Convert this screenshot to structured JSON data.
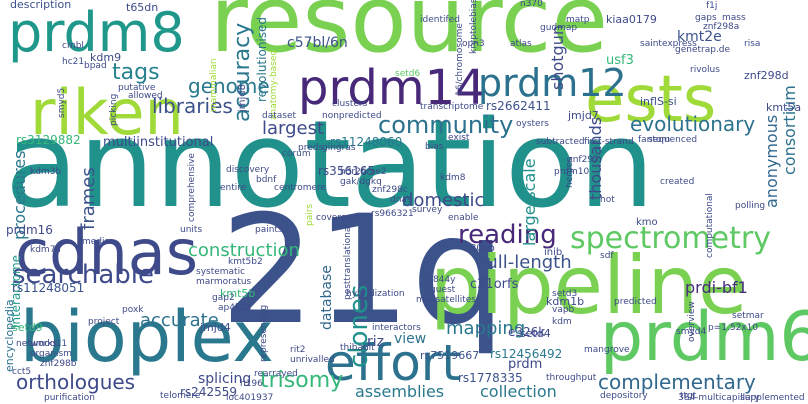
{
  "words": [
    {
      "text": "resource",
      "color": "#7ad151"
    },
    {
      "text": "annotation",
      "color": "#21918c"
    },
    {
      "text": "21q",
      "color": "#3b528b"
    },
    {
      "text": "pipeline",
      "color": "#7ad151"
    },
    {
      "text": "bioplex",
      "color": "#2a788e"
    },
    {
      "text": "prdm14",
      "color": "#482878"
    },
    {
      "text": "prdm8",
      "color": "#1f988b"
    },
    {
      "text": "cdnas",
      "color": "#3e4a89"
    },
    {
      "text": "prdm6",
      "color": "#5ec962"
    },
    {
      "text": "riken",
      "color": "#a0da39"
    },
    {
      "text": "ests",
      "color": "#a0da39"
    },
    {
      "text": "effort",
      "color": "#2c728e"
    },
    {
      "text": "prdm12",
      "color": "#2c728e"
    },
    {
      "text": "spectrometry",
      "color": "#5ec962"
    },
    {
      "text": "searchable",
      "color": "#3e4a89"
    },
    {
      "text": "community",
      "color": "#2c728e"
    },
    {
      "text": "accuracy",
      "color": "#2a788e"
    },
    {
      "text": "reading",
      "color": "#482878"
    },
    {
      "text": "libraries",
      "color": "#3b528b"
    },
    {
      "text": "genome",
      "color": "#2a788e"
    },
    {
      "text": "tags",
      "color": "#26828e"
    },
    {
      "text": "clones",
      "color": "#21918c"
    },
    {
      "text": "trisomy",
      "color": "#35b779"
    },
    {
      "text": "orthologues",
      "color": "#3e4a89"
    },
    {
      "text": "complementary",
      "color": "#31688e"
    },
    {
      "text": "evolutionary",
      "color": "#2c728e"
    },
    {
      "text": "largest",
      "color": "#3e4a89"
    },
    {
      "text": "construction",
      "color": "#35b779"
    },
    {
      "text": "full-length",
      "color": "#3b528b"
    },
    {
      "text": "domestic",
      "color": "#3e4a89"
    },
    {
      "text": "accurate",
      "color": "#2c728e"
    },
    {
      "text": "mapping",
      "color": "#2a788e"
    },
    {
      "text": "assemblies",
      "color": "#2a788e"
    },
    {
      "text": "collection",
      "color": "#2a788e"
    },
    {
      "text": "procedures",
      "color": "#2a788e"
    },
    {
      "text": "frames",
      "color": "#3b528b"
    },
    {
      "text": "shotgun",
      "color": "#3e4a89"
    },
    {
      "text": "consortium",
      "color": "#2c728e"
    },
    {
      "text": "anonymous",
      "color": "#31688e"
    },
    {
      "text": "large-scale",
      "color": "#21918c"
    },
    {
      "text": "thousands",
      "color": "#3e4a89"
    },
    {
      "text": "prdi-bf1",
      "color": "#472d7b"
    },
    {
      "text": "kmt2e",
      "color": "#3b528b"
    },
    {
      "text": "c57bl/6n",
      "color": "#3b528b"
    },
    {
      "text": "revolutionised",
      "color": "#2a788e"
    },
    {
      "text": "rs2662411",
      "color": "#3b528b"
    },
    {
      "text": "multiinstitutional",
      "color": "#3e4a89"
    },
    {
      "text": "interactome",
      "color": "#1f988b"
    },
    {
      "text": "encyclopedia",
      "color": "#2c728e"
    },
    {
      "text": "splicing",
      "color": "#3e4a89"
    },
    {
      "text": "database",
      "color": "#31688e"
    },
    {
      "text": "riz",
      "color": "#3e4a89"
    },
    {
      "text": "view",
      "color": "#2c728e"
    },
    {
      "text": "prdm",
      "color": "#3e4a89"
    },
    {
      "text": "prdm16",
      "color": "#3e4a89"
    },
    {
      "text": "rs3129882",
      "color": "#35b779"
    },
    {
      "text": "rs11248060",
      "color": "#2a788e"
    },
    {
      "text": "rs356165",
      "color": "#3e4a89"
    },
    {
      "text": "rs11248051",
      "color": "#3b528b"
    },
    {
      "text": "rs12456492",
      "color": "#2a788e"
    },
    {
      "text": "rs1778335",
      "color": "#3b528b"
    },
    {
      "text": "rs7519667",
      "color": "#3b528b"
    },
    {
      "text": "rs242559",
      "color": "#3e4a89"
    },
    {
      "text": "e326k",
      "color": "#3e4a89"
    },
    {
      "text": "c21orfs",
      "color": "#3e4a89"
    },
    {
      "text": "usf3",
      "color": "#35b779"
    },
    {
      "text": "jmjd4",
      "color": "#3e4a89"
    },
    {
      "text": "kmt5b",
      "color": "#35b779"
    },
    {
      "text": "kdm1b",
      "color": "#3e4a89"
    },
    {
      "text": "inflS-si",
      "color": "#3b528b"
    },
    {
      "text": "kiaa0179",
      "color": "#3e4a89"
    },
    {
      "text": "znf298d",
      "color": "#3e4a89"
    },
    {
      "text": "description",
      "color": "#3b528b"
    },
    {
      "text": "t65dn",
      "color": "#3e4a89"
    },
    {
      "text": "kdm9",
      "color": "#3e4a89"
    },
    {
      "text": "setd9",
      "color": "#35b779"
    },
    {
      "text": "jmjd7",
      "color": "#3e4a89"
    },
    {
      "text": "setd4",
      "color": "#3e4a89"
    },
    {
      "text": "kmt5a",
      "color": "#3e4a89"
    },
    {
      "text": "jmjd8",
      "color": "#3e4a89"
    },
    {
      "text": "kmo",
      "color": "#3e4a89"
    },
    {
      "text": "inib",
      "color": "#3e4a89"
    },
    {
      "text": "80kb",
      "color": "#3e4a89"
    },
    {
      "text": "corum",
      "color": "#3b528b"
    },
    {
      "text": "fantom",
      "color": "#3e4a89"
    },
    {
      "text": "opn3",
      "color": "#3e4a89"
    },
    {
      "text": "n370",
      "color": "#3e4a89"
    },
    {
      "text": "gaps",
      "color": "#3e4a89"
    },
    {
      "text": "mass",
      "color": "#3e4a89"
    },
    {
      "text": "znf298a",
      "color": "#3e4a89"
    },
    {
      "text": "risa",
      "color": "#3e4a89"
    },
    {
      "text": "saintexpress",
      "color": "#3e4a89"
    },
    {
      "text": "genetrap.de",
      "color": "#3e4a89"
    },
    {
      "text": "kryptolebias",
      "color": "#3e4a89"
    },
    {
      "text": "atlas",
      "color": "#3e4a89"
    },
    {
      "text": "gudmap",
      "color": "#3e4a89"
    },
    {
      "text": "identifed",
      "color": "#3e4a89"
    },
    {
      "text": "16/chromosome",
      "color": "#3e4a89"
    },
    {
      "text": "anatomy-based",
      "color": "#a0da39"
    },
    {
      "text": "cmbl",
      "color": "#3e4a89"
    },
    {
      "text": "hc21",
      "color": "#3e4a89"
    },
    {
      "text": "bpad",
      "color": "#3e4a89"
    },
    {
      "text": "putative",
      "color": "#3e4a89"
    },
    {
      "text": "allowed",
      "color": "#3e4a89"
    },
    {
      "text": "mammalian",
      "color": "#a0da39"
    },
    {
      "text": "picking",
      "color": "#3e4a89"
    },
    {
      "text": "smyd5",
      "color": "#3e4a89"
    },
    {
      "text": "clusters",
      "color": "#3e4a89"
    },
    {
      "text": "setd6",
      "color": "#5ec962"
    },
    {
      "text": "dataset",
      "color": "#3e4a89"
    },
    {
      "text": "nonpredicted",
      "color": "#3e4a89"
    },
    {
      "text": "transcriptome",
      "color": "#3e4a89"
    },
    {
      "text": "oysters",
      "color": "#3e4a89"
    },
    {
      "text": "exist",
      "color": "#3e4a89"
    },
    {
      "text": "bias",
      "color": "#3e4a89"
    },
    {
      "text": "subtracted",
      "color": "#3e4a89"
    },
    {
      "text": "first-strand",
      "color": "#3e4a89"
    },
    {
      "text": "sequenced",
      "color": "#3e4a89"
    },
    {
      "text": "preds",
      "color": "#3e4a89"
    },
    {
      "text": "gingras",
      "color": "#3e4a89"
    },
    {
      "text": "kdm3b",
      "color": "#3e4a89"
    },
    {
      "text": "entire",
      "color": "#3e4a89"
    },
    {
      "text": "centromere",
      "color": "#3e4a89"
    },
    {
      "text": "comprehensive",
      "color": "#3e4a89"
    },
    {
      "text": "units",
      "color": "#3e4a89"
    },
    {
      "text": "pairs",
      "color": "#a0da39"
    },
    {
      "text": "coverage",
      "color": "#3e4a89"
    },
    {
      "text": "paints",
      "color": "#3e4a89"
    },
    {
      "text": "h3r26me2",
      "color": "#3e4a89"
    },
    {
      "text": "gak/dgkq",
      "color": "#3e4a89"
    },
    {
      "text": "znf298c",
      "color": "#3e4a89"
    },
    {
      "text": "dnas",
      "color": "#3e4a89"
    },
    {
      "text": "survey",
      "color": "#3e4a89"
    },
    {
      "text": "enable",
      "color": "#3e4a89"
    },
    {
      "text": "kdm8",
      "color": "#3e4a89"
    },
    {
      "text": "prdm10",
      "color": "#3e4a89"
    },
    {
      "text": "herpes",
      "color": "#3e4a89"
    },
    {
      "text": "created",
      "color": "#3e4a89"
    },
    {
      "text": "polling",
      "color": "#3e4a89"
    },
    {
      "text": "computational",
      "color": "#3e4a89"
    },
    {
      "text": "hot",
      "color": "#3e4a89"
    },
    {
      "text": "rs966321",
      "color": "#3e4a89"
    },
    {
      "text": "kdm7a",
      "color": "#3e4a89"
    },
    {
      "text": "posttranslational",
      "color": "#3e4a89"
    },
    {
      "text": "hybridization",
      "color": "#3e4a89"
    },
    {
      "text": "systematic",
      "color": "#3e4a89"
    },
    {
      "text": "marmoratus",
      "color": "#3e4a89"
    },
    {
      "text": "c844y",
      "color": "#3e4a89"
    },
    {
      "text": "guest",
      "color": "#3e4a89"
    },
    {
      "text": "minisatellites",
      "color": "#3e4a89"
    },
    {
      "text": "setd3",
      "color": "#3e4a89"
    },
    {
      "text": "vapb",
      "color": "#3e4a89"
    },
    {
      "text": "kdm",
      "color": "#3e4a89"
    },
    {
      "text": "predicted",
      "color": "#3e4a89"
    },
    {
      "text": "overview",
      "color": "#3e4a89"
    },
    {
      "text": "setmar",
      "color": "#3e4a89"
    },
    {
      "text": "p=1.52x10",
      "color": "#3e4a89"
    },
    {
      "text": "smyd4",
      "color": "#3e4a89"
    },
    {
      "text": "mangrove",
      "color": "#3e4a89"
    },
    {
      "text": "poxk",
      "color": "#3e4a89"
    },
    {
      "text": "supplemented",
      "color": "#3e4a89"
    },
    {
      "text": "project",
      "color": "#3e4a89"
    },
    {
      "text": "networks",
      "color": "#3e4a89"
    },
    {
      "text": "organism",
      "color": "#3e4a89"
    },
    {
      "text": "umod11",
      "color": "#3e4a89"
    },
    {
      "text": "znf298b",
      "color": "#3e4a89"
    },
    {
      "text": "cct5",
      "color": "#3e4a89"
    },
    {
      "text": "purification",
      "color": "#3e4a89"
    },
    {
      "text": "telomere",
      "color": "#3e4a89"
    },
    {
      "text": "loc401937",
      "color": "#3e4a89"
    },
    {
      "text": "h196",
      "color": "#3e4a89"
    },
    {
      "text": "rearrayed",
      "color": "#3e4a89"
    },
    {
      "text": "unrivalled",
      "color": "#3e4a89"
    },
    {
      "text": "rit2",
      "color": "#3e4a89"
    },
    {
      "text": "representing",
      "color": "#3e4a89"
    },
    {
      "text": "interactors",
      "color": "#3e4a89"
    },
    {
      "text": "thibault",
      "color": "#3e4a89"
    },
    {
      "text": "throughput",
      "color": "#3e4a89"
    },
    {
      "text": "depository",
      "color": "#3e4a89"
    },
    {
      "text": "ttgt",
      "color": "#3e4a89"
    },
    {
      "text": "384-multicapillary",
      "color": "#3e4a89"
    },
    {
      "text": "kmt5b2",
      "color": "#3e4a89"
    },
    {
      "text": "gap2",
      "color": "#3e4a89"
    },
    {
      "text": "ap4k2a",
      "color": "#3e4a89"
    },
    {
      "text": "znf295",
      "color": "#3e4a89"
    },
    {
      "text": "rivolus",
      "color": "#3e4a89"
    },
    {
      "text": "f1j",
      "color": "#3e4a89"
    },
    {
      "text": "matp",
      "color": "#3e4a89"
    },
    {
      "text": "media",
      "color": "#3e4a89"
    },
    {
      "text": "discovery",
      "color": "#3e4a89"
    },
    {
      "text": "bdnf",
      "color": "#3e4a89"
    },
    {
      "text": "sdf",
      "color": "#3e4a89"
    }
  ]
}
